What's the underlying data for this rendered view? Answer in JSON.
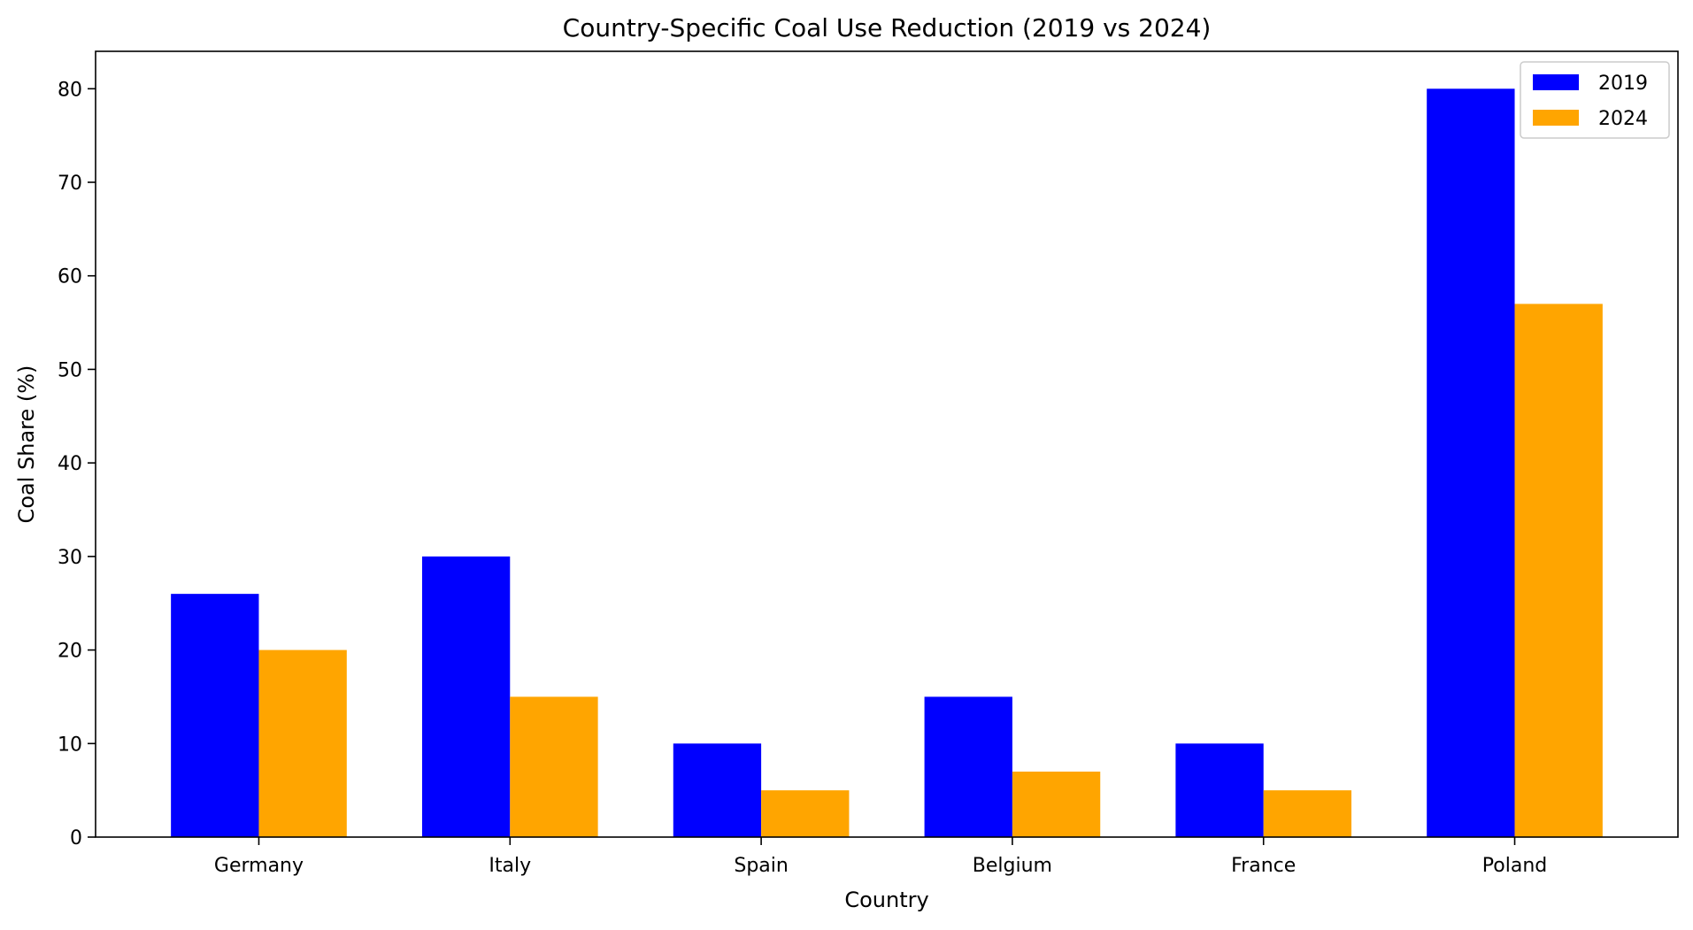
{
  "chart_data": {
    "type": "bar",
    "title": "Country-Specific Coal Use Reduction (2019 vs 2024)",
    "xlabel": "Country",
    "ylabel": "Coal Share (%)",
    "categories": [
      "Germany",
      "Italy",
      "Spain",
      "Belgium",
      "France",
      "Poland"
    ],
    "series": [
      {
        "name": "2019",
        "color": "#0000ff",
        "values": [
          26,
          30,
          10,
          15,
          10,
          80
        ]
      },
      {
        "name": "2024",
        "color": "#ffa500",
        "values": [
          20,
          15,
          5,
          7,
          5,
          57
        ]
      }
    ],
    "ylim": [
      0,
      84
    ],
    "yticks": [
      0,
      10,
      20,
      30,
      40,
      50,
      60,
      70,
      80
    ],
    "grid": false,
    "legend_position": "top-right"
  }
}
